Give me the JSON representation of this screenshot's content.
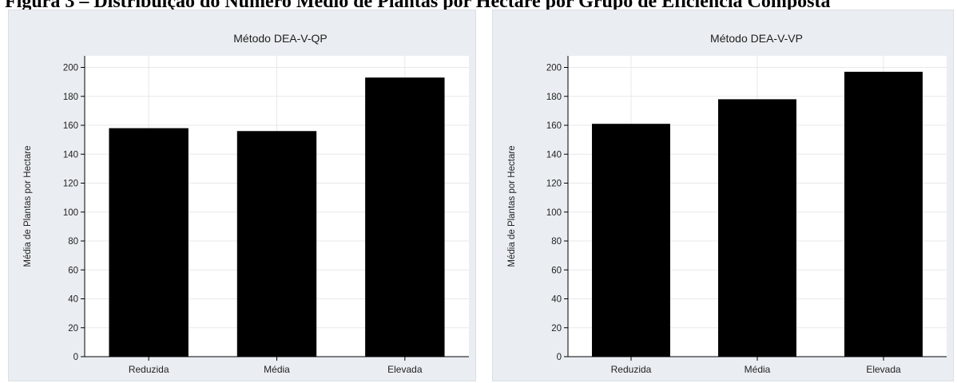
{
  "header": {
    "title": "Figura 3 – Distribuição do Número Médio de Plantas por Hectare por Grupo de Eficiência Composta"
  },
  "colors": {
    "panel_background": "#eaeef2",
    "plot_background": "#ffffff",
    "bar": "#000000",
    "grid": "#e8e8e8"
  },
  "chart_data": [
    {
      "type": "bar",
      "title": "Método DEA-V-QP",
      "ylabel": "Média de Plantas por Hectare",
      "xlabel": "",
      "categories": [
        "Reduzida",
        "Média",
        "Elevada"
      ],
      "values": [
        158,
        156,
        193
      ],
      "ylim": [
        0,
        208
      ],
      "yticks": [
        0,
        20,
        40,
        60,
        80,
        100,
        120,
        140,
        160,
        180,
        200
      ],
      "grid": true,
      "legend": "none"
    },
    {
      "type": "bar",
      "title": "Método DEA-V-VP",
      "ylabel": "Média de Plantas por Hectare",
      "xlabel": "",
      "categories": [
        "Reduzida",
        "Média",
        "Elevada"
      ],
      "values": [
        161,
        178,
        197
      ],
      "ylim": [
        0,
        208
      ],
      "yticks": [
        0,
        20,
        40,
        60,
        80,
        100,
        120,
        140,
        160,
        180,
        200
      ],
      "grid": true,
      "legend": "none"
    }
  ]
}
